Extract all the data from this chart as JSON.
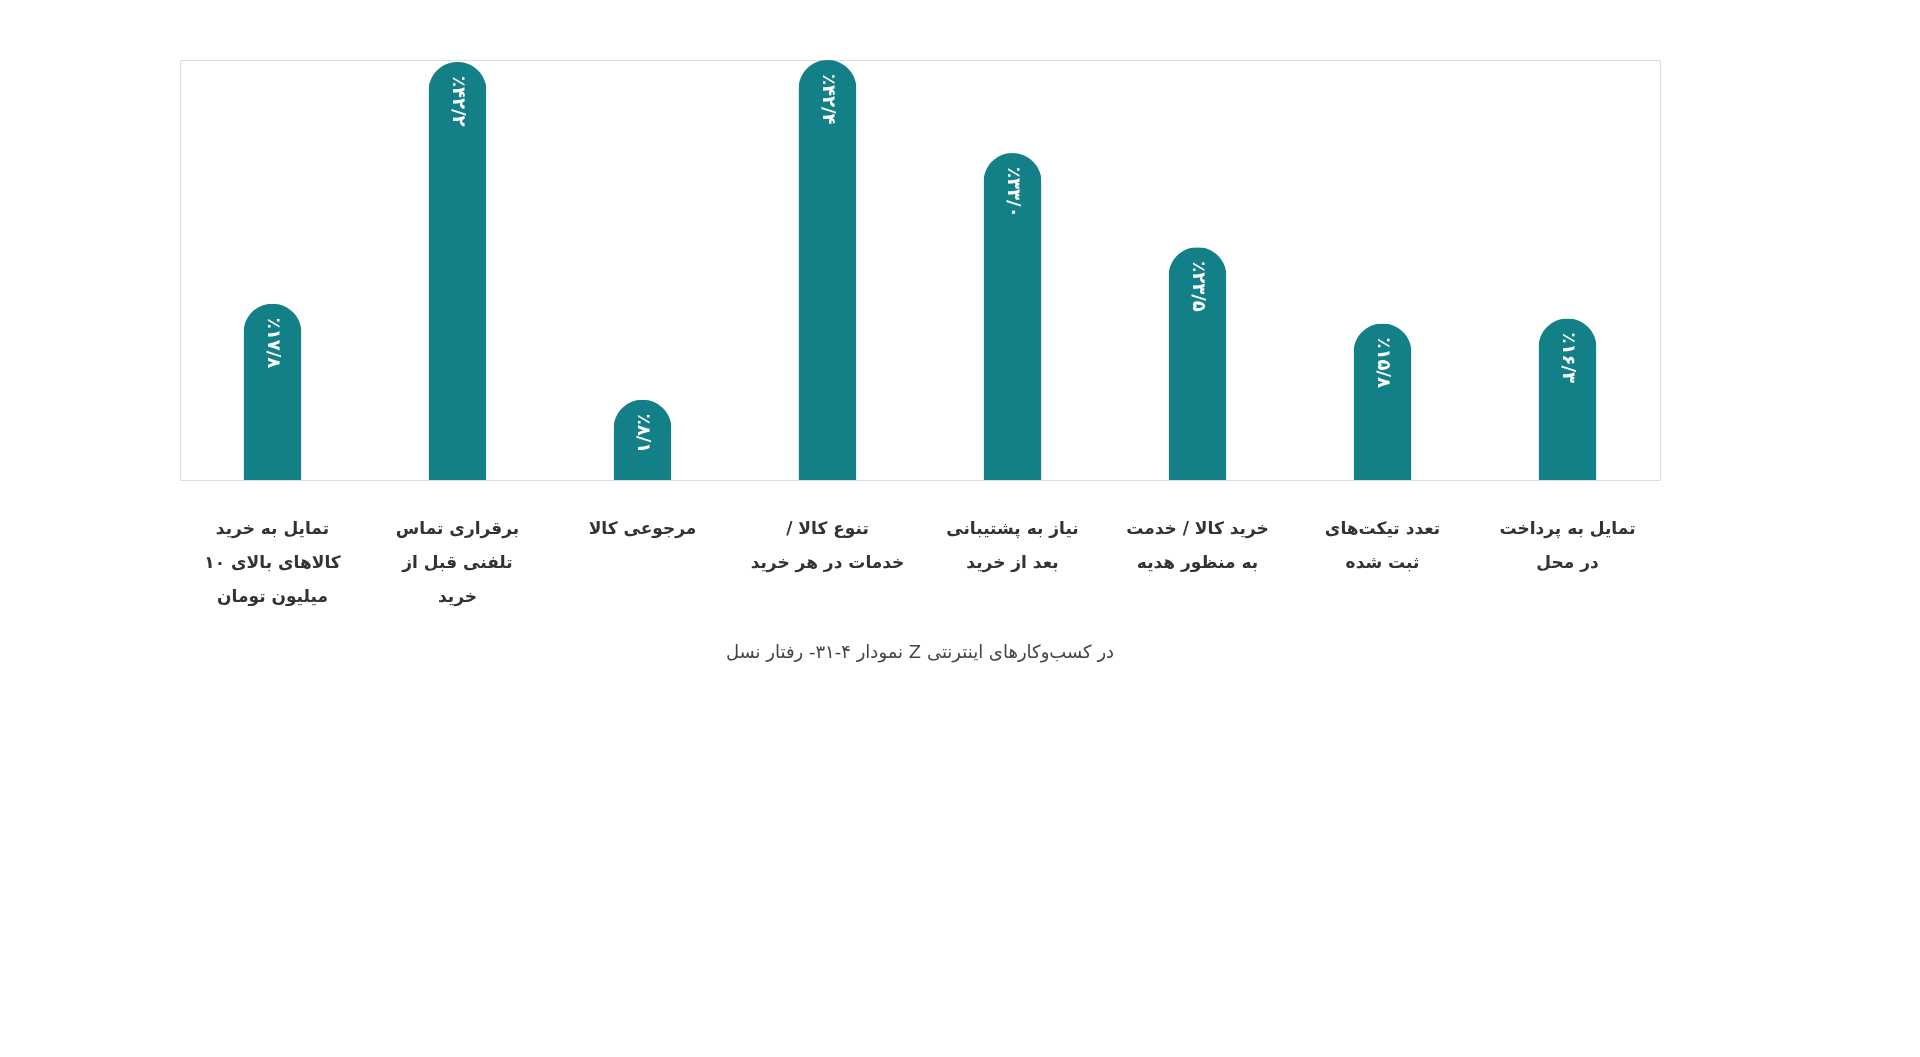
{
  "chart_data": {
    "type": "bar",
    "title": "نمودار ۴-۳۱- رفتار نسل Z در کسب‌وکارهای اینترنتی",
    "categories": [
      "تمایل به خرید کالاهای بالای ۱۰ میلیون تومان",
      "برقراری تماس تلفنی قبل از خرید",
      "مرجوعی کالا",
      "تنوع کالا / خدمات در هر خرید",
      "نیاز به پشتیبانی بعد از خرید",
      "خرید کالا / خدمت به منظور هدیه",
      "تعدد تیکت‌های ثبت شده",
      "تمایل به پرداخت در محل"
    ],
    "values": [
      17.8,
      42.2,
      8.1,
      42.4,
      33.0,
      23.5,
      15.8,
      16.3
    ],
    "value_labels": [
      "٪۱۷/۸",
      "٪۴۲/۲",
      "٪۸/۱",
      "٪۴۲/۴",
      "٪۳۳/۰",
      "٪۲۳/۵",
      "٪۱۵/۸",
      "٪۱۶/۳"
    ],
    "color": "#137f86"
  }
}
